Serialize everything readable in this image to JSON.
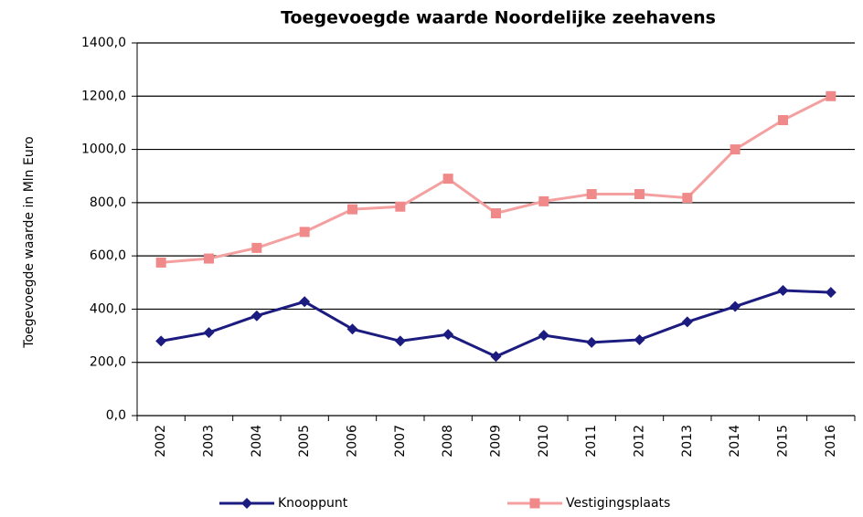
{
  "chart_data": {
    "type": "line",
    "title": "Toegevoegde waarde Noordelijke zeehavens",
    "y_label": "Toegevoegde waarde in Mln Euro",
    "categories": [
      "2002",
      "2003",
      "2004",
      "2005",
      "2006",
      "2007",
      "2008",
      "2009",
      "2010",
      "2011",
      "2012",
      "2013",
      "2014",
      "2015",
      "2016"
    ],
    "series": [
      {
        "name": "Knooppunt",
        "color": "#1c1c80",
        "marker": "diamond",
        "values": [
          280,
          312,
          375,
          428,
          325,
          280,
          305,
          222,
          302,
          275,
          285,
          352,
          410,
          470,
          463
        ]
      },
      {
        "name": "Vestigingsplaats",
        "color": "#f4a0a0",
        "marker": "square",
        "values": [
          575,
          590,
          630,
          690,
          775,
          785,
          890,
          760,
          805,
          832,
          832,
          818,
          1000,
          1110,
          1200
        ]
      }
    ],
    "ylim": [
      0,
      1400
    ],
    "yticks": [
      {
        "value": 0,
        "label": "0,0"
      },
      {
        "value": 200,
        "label": "200,0"
      },
      {
        "value": 400,
        "label": "400,0"
      },
      {
        "value": 600,
        "label": "600,0"
      },
      {
        "value": 800,
        "label": "800,0"
      },
      {
        "value": 1000,
        "label": "1000,0"
      },
      {
        "value": 1200,
        "label": "1200,0"
      },
      {
        "value": 1400,
        "label": "1400,0"
      }
    ],
    "grid": true,
    "legend": "bottom"
  }
}
